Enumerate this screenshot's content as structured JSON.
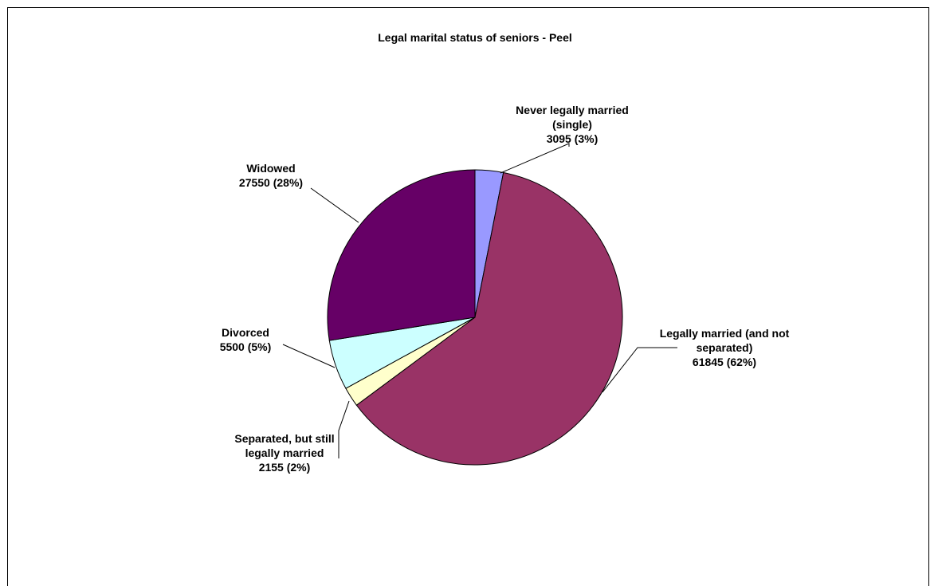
{
  "chart_data": {
    "type": "pie",
    "title": "Legal marital status of seniors - Peel",
    "slices": [
      {
        "name": "Never legally married (single)",
        "label_lines": [
          "Never legally married",
          "(single)",
          "3095 (3%)"
        ],
        "value": 3095,
        "percent": "3%",
        "color": "#9999ff"
      },
      {
        "name": "Legally married (and not separated)",
        "label_lines": [
          "Legally married (and not",
          "separated)",
          "61845 (62%)"
        ],
        "value": 61845,
        "percent": "62%",
        "color": "#993366"
      },
      {
        "name": "Separated, but still legally married",
        "label_lines": [
          "Separated, but still",
          "legally married",
          "2155 (2%)"
        ],
        "value": 2155,
        "percent": "2%",
        "color": "#ffffcc"
      },
      {
        "name": "Divorced",
        "label_lines": [
          "Divorced",
          "5500 (5%)"
        ],
        "value": 5500,
        "percent": "5%",
        "color": "#ccffff"
      },
      {
        "name": "Widowed",
        "label_lines": [
          "Widowed",
          "27550 (28%)"
        ],
        "value": 27550,
        "percent": "28%",
        "color": "#660066"
      }
    ],
    "start_angle": "12 o'clock",
    "direction": "clockwise",
    "legend": "none"
  }
}
